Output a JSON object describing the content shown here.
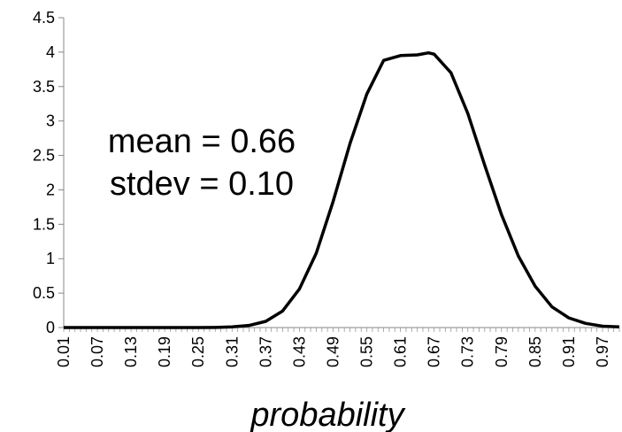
{
  "chart_data": {
    "type": "line",
    "title": "",
    "xlabel": "probability",
    "ylabel": "",
    "ylim": [
      0,
      4.5
    ],
    "yticks": [
      "0",
      "0.5",
      "1",
      "1.5",
      "2",
      "2.5",
      "3",
      "3.5",
      "4",
      "4.5"
    ],
    "xticks": [
      "0.01",
      "0.07",
      "0.13",
      "0.19",
      "0.25",
      "0.31",
      "0.37",
      "0.43",
      "0.49",
      "0.55",
      "0.61",
      "0.67",
      "0.73",
      "0.79",
      "0.85",
      "0.91",
      "0.97"
    ],
    "xlim": [
      0.01,
      1.0
    ],
    "grid": false,
    "legend": "none",
    "annotations": [
      "mean = 0.66",
      "stdev = 0.10"
    ],
    "series": [
      {
        "color": "#000000",
        "mean": 0.66,
        "stdev": 0.1,
        "x": [
          0.01,
          0.04,
          0.07,
          0.1,
          0.13,
          0.16,
          0.19,
          0.22,
          0.25,
          0.28,
          0.31,
          0.34,
          0.37,
          0.4,
          0.43,
          0.46,
          0.49,
          0.52,
          0.55,
          0.58,
          0.61,
          0.64,
          0.66,
          0.67,
          0.7,
          0.73,
          0.76,
          0.79,
          0.82,
          0.85,
          0.88,
          0.91,
          0.94,
          0.97,
          1.0
        ],
        "values": [
          0,
          0,
          0,
          0,
          0,
          0,
          0,
          0,
          0,
          0.002,
          0.009,
          0.03,
          0.09,
          0.24,
          0.56,
          1.08,
          1.83,
          2.67,
          3.39,
          3.88,
          3.95,
          3.96,
          3.99,
          3.97,
          3.7,
          3.11,
          2.36,
          1.64,
          1.04,
          0.6,
          0.3,
          0.14,
          0.06,
          0.02,
          0.01
        ]
      }
    ]
  }
}
